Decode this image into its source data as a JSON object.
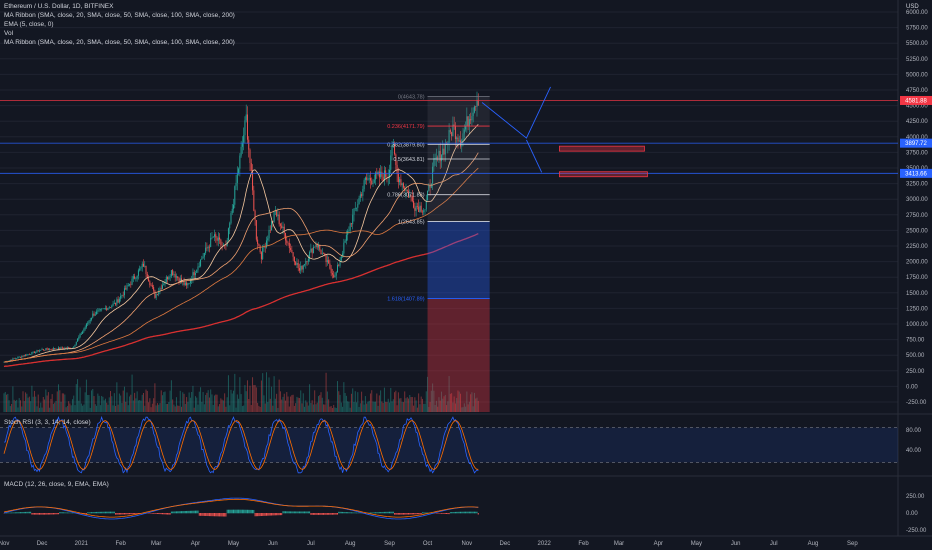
{
  "header": {
    "title": "Ethereum / U.S. Dollar, 1D, BITFINEX",
    "indicators": [
      "MA Ribbon (SMA, close, 20, SMA, close, 50, SMA, close, 100, SMA, close, 200)",
      "EMA (5, close, 0)",
      "Vol",
      "MA Ribbon (SMA, close, 20, SMA, close, 50, SMA, close, 100, SMA, close, 200)"
    ],
    "currency": "USD"
  },
  "price_axis": {
    "ticks": [
      "6000.00",
      "5750.00",
      "5500.00",
      "5250.00",
      "5000.00",
      "4750.00",
      "4500.00",
      "4250.00",
      "4000.00",
      "3750.00",
      "3500.00",
      "3250.00",
      "3000.00",
      "2750.00",
      "2500.00",
      "2250.00",
      "2000.00",
      "1750.00",
      "1500.00",
      "1250.00",
      "1000.00",
      "750.00",
      "500.00",
      "250.00",
      "0.00",
      "-250.00"
    ],
    "badges": [
      {
        "label": "4581.88",
        "value": 4582,
        "color": "#f23645"
      },
      {
        "label": "3897.72",
        "value": 3898,
        "color": "#2962ff"
      },
      {
        "label": "3413.66",
        "value": 3414,
        "color": "#2962ff"
      }
    ]
  },
  "time_axis": {
    "ticks": [
      "Nov",
      "Dec",
      "2021",
      "Feb",
      "Mar",
      "Apr",
      "May",
      "Jun",
      "Jul",
      "Aug",
      "Sep",
      "Oct",
      "Nov",
      "Dec",
      "2022",
      "Feb",
      "Mar",
      "Apr",
      "May",
      "Jun",
      "Jul",
      "Aug",
      "Sep"
    ]
  },
  "fib": {
    "levels": [
      {
        "label": "0(4643.78)",
        "ratio": 0,
        "value": 4644,
        "color": "#787b86"
      },
      {
        "label": "0.236(4171.79)",
        "ratio": 0.236,
        "value": 4172,
        "color": "#f23645"
      },
      {
        "label": "0.382(3879.80)",
        "ratio": 0.382,
        "value": 3880,
        "color": "#d1d4dc"
      },
      {
        "label": "0.5(3643.81)",
        "ratio": 0.5,
        "value": 3644,
        "color": "#d1d4dc"
      },
      {
        "label": "0.786(3071.83)",
        "ratio": 0.786,
        "value": 3072,
        "color": "#d1d4dc"
      },
      {
        "label": "1(2643.85)",
        "ratio": 1,
        "value": 2644,
        "color": "#d1d4dc"
      },
      {
        "label": "1.618(1407.89)",
        "ratio": 1.618,
        "value": 1408,
        "color": "#2962ff"
      }
    ]
  },
  "rsi": {
    "title": "Stoch RSI (3, 3, 14, 14, close)",
    "ticks": [
      "80.00",
      "40.00"
    ]
  },
  "macd": {
    "title": "MACD (12, 26, close, 9, EMA, EMA)",
    "ticks": [
      "250.00",
      "0.00",
      "-250.00"
    ]
  },
  "chart_data": {
    "type": "line",
    "x": [
      "2020-11",
      "2020-12",
      "2021-01",
      "2021-02",
      "2021-03",
      "2021-04",
      "2021-05",
      "2021-06",
      "2021-07",
      "2021-08",
      "2021-09",
      "2021-10",
      "2021-11"
    ],
    "series": [
      {
        "name": "Ethereum / U.S. Dollar",
        "values": [
          600,
          740,
          1300,
          1600,
          1800,
          2200,
          3500,
          2200,
          2100,
          3100,
          3600,
          3500,
          4580
        ]
      }
    ],
    "horizontal_lines": [
      4582,
      3898,
      3414
    ],
    "ylim": [
      -250,
      6000
    ],
    "xlabel": "",
    "ylabel": "USD"
  }
}
